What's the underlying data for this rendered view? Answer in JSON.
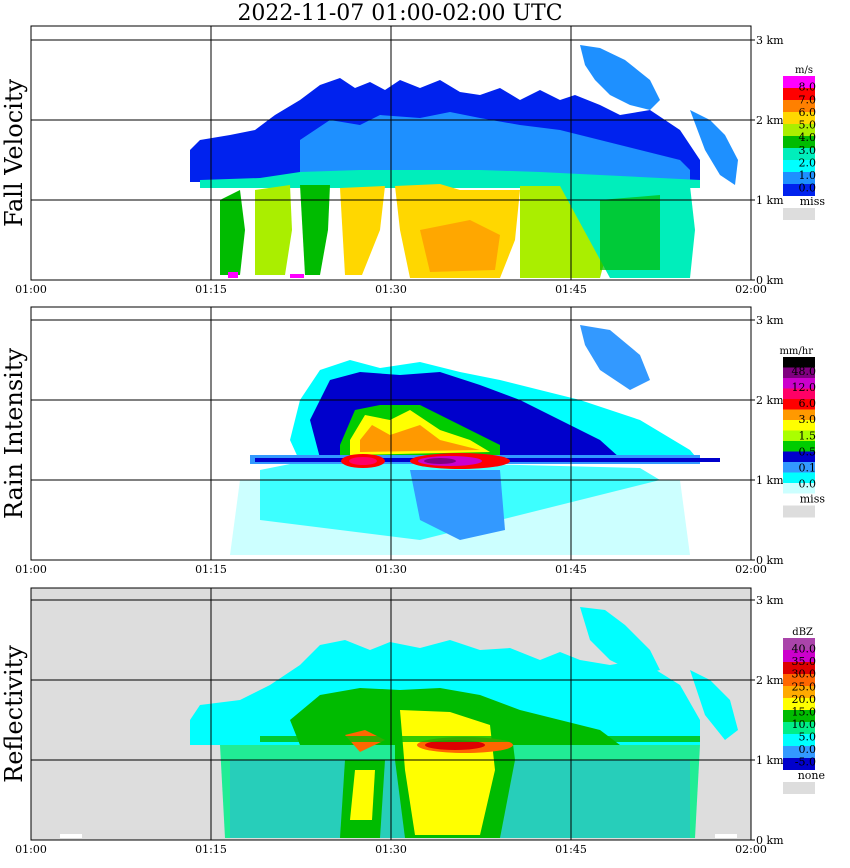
{
  "title": "2022-11-07   01:00-02:00 UTC",
  "chart_data": [
    {
      "type": "heatmap",
      "title": "Fall Velocity",
      "xlabel": "",
      "x_ticks": [
        "01:00",
        "01:15",
        "01:30",
        "01:45",
        "02:00"
      ],
      "y_ticks": [
        "0 km",
        "1 km",
        "2 km",
        "3 km"
      ],
      "ylim": [
        0,
        3.0
      ],
      "colorbar": {
        "unit": "m/s",
        "colors": [
          "#ff00ff",
          "#ff0000",
          "#ff8000",
          "#ffd700",
          "#aaee00",
          "#00bb00",
          "#00eebb",
          "#00ffff",
          "#1e90ff",
          "#0022ee"
        ],
        "labels": [
          "8.0",
          "7.0",
          "6.0",
          "5.0",
          "4.0",
          "3.0",
          "2.0",
          "1.0",
          "0.0"
        ],
        "missing_label": "miss",
        "missing_color": "#dddddd"
      }
    },
    {
      "type": "heatmap",
      "title": "Rain Intensity",
      "xlabel": "",
      "x_ticks": [
        "01:00",
        "01:15",
        "01:30",
        "01:45",
        "02:00"
      ],
      "y_ticks": [
        "0 km",
        "1 km",
        "2 km",
        "3 km"
      ],
      "ylim": [
        0,
        3.0
      ],
      "colorbar": {
        "unit": "mm/hr",
        "colors": [
          "#000000",
          "#800080",
          "#cc00cc",
          "#ff0066",
          "#ff0000",
          "#ff9900",
          "#ffff00",
          "#aaff00",
          "#00cc00",
          "#0000cc",
          "#3399ff",
          "#00ffff",
          "#ccffff"
        ],
        "labels": [
          "48.0",
          "12.0",
          "6.0",
          "3.0",
          "1.5",
          "0.5",
          "0.1",
          "0.0"
        ],
        "missing_label": "miss",
        "missing_color": "#dddddd"
      }
    },
    {
      "type": "heatmap",
      "title": "Reflectivity",
      "xlabel": "",
      "x_ticks": [
        "01:00",
        "01:15",
        "01:30",
        "01:45",
        "02:00"
      ],
      "y_ticks": [
        "0 km",
        "1 km",
        "2 km",
        "3 km"
      ],
      "ylim": [
        0,
        3.0
      ],
      "colorbar": {
        "unit": "dBZ",
        "colors": [
          "#aa44aa",
          "#cc00cc",
          "#dd0000",
          "#ff6600",
          "#ffaa00",
          "#ffff00",
          "#00bb00",
          "#00ee88",
          "#00ffff",
          "#3399ff",
          "#0000cc"
        ],
        "labels": [
          "40.0",
          "35.0",
          "30.0",
          "25.0",
          "20.0",
          "15.0",
          "10.0",
          "5.0",
          "0.0",
          "-5.0"
        ],
        "missing_label": "none",
        "missing_color": "#dddddd"
      }
    }
  ]
}
